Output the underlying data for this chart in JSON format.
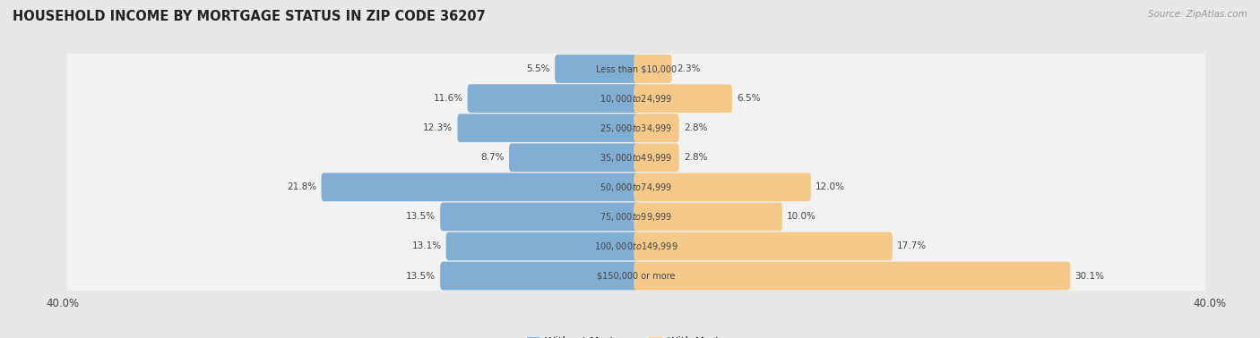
{
  "title": "HOUSEHOLD INCOME BY MORTGAGE STATUS IN ZIP CODE 36207",
  "source": "Source: ZipAtlas.com",
  "categories": [
    "Less than $10,000",
    "$10,000 to $24,999",
    "$25,000 to $34,999",
    "$35,000 to $49,999",
    "$50,000 to $74,999",
    "$75,000 to $99,999",
    "$100,000 to $149,999",
    "$150,000 or more"
  ],
  "without_mortgage": [
    5.5,
    11.6,
    12.3,
    8.7,
    21.8,
    13.5,
    13.1,
    13.5
  ],
  "with_mortgage": [
    2.3,
    6.5,
    2.8,
    2.8,
    12.0,
    10.0,
    17.7,
    30.1
  ],
  "color_without": "#82aed4",
  "color_with": "#f5c98a",
  "axis_max": 40.0,
  "bg_color": "#e8e8e8",
  "row_bg_color": "#f2f2f2",
  "label_color": "#444444",
  "title_color": "#222222"
}
